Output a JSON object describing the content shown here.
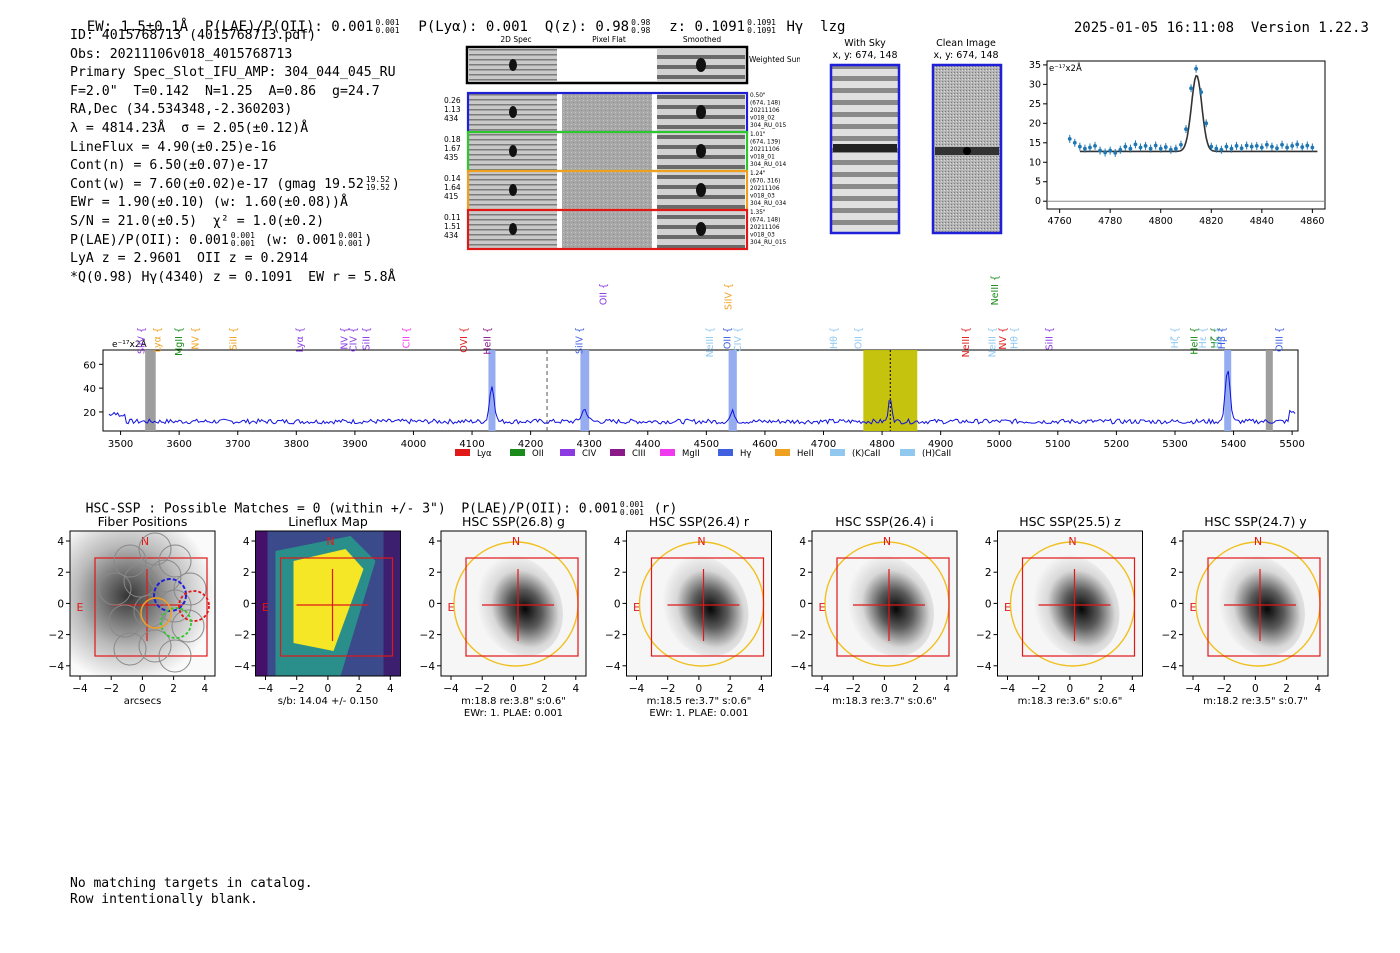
{
  "header": {
    "left": "EW: 1.5±0.1Å  P(LAE)/P(OII): 0.001",
    "ratio_hi": "0.001",
    "ratio_lo": "0.001",
    "plya": "P(Lyα): 0.001  Q(z): 0.98",
    "qz_hi": "0.98",
    "qz_lo": "0.98",
    "z": "z: 0.1091",
    "z_hi": "0.1091",
    "z_lo": "0.1091",
    "line": "Hγ  lzg",
    "timestamp": "2025-01-05 16:11:08",
    "version": "Version 1.22.3"
  },
  "info_lines": [
    "ID: 4015768713 (4015768713.pdf)",
    "Obs: 20211106v018_4015768713",
    "Primary Spec_Slot_IFU_AMP: 304_044_045_RU",
    "F=2.0\"  T=0.142  N=1.25  A=0.86  g=24.7",
    "RA,Dec (34.534348,-2.360203)",
    "λ = 4814.23Å  σ = 2.05(±0.12)Å",
    "LineFlux = 4.90(±0.25)e-16",
    "Cont(n) = 6.50(±0.07)e-17"
  ],
  "info_contw": "Cont(w) = 7.60(±0.02)e-17 (gmag 19.52",
  "info_contw_hi": "19.52",
  "info_contw_lo": "19.52",
  "info_ewr": "EWr = 1.90(±0.10) (w: 1.60(±0.08))Å",
  "info_sn": "S/N = 21.0(±0.5)  χ² = 1.0(±0.2)",
  "info_plae": "P(LAE)/P(OII): 0.001",
  "info_plae_w": "(w: 0.001",
  "info_lya": "LyA z = 2.9601  OII z = 0.2914",
  "info_q": "*Q(0.98) Hγ(4340) z = 0.1091  EW r = 5.8Å",
  "cutouts": {
    "col_2d": "2D Spec",
    "col_flat": "Pixel Flat",
    "col_smooth": "Smoothed",
    "weighted": "Weighted Sum",
    "rows": [
      {
        "stats": [
          "0.26",
          "1.13",
          "434"
        ],
        "meta": [
          "0.50\"",
          "(674, 148)",
          "20211106",
          "v018_02",
          "304_RU_015"
        ],
        "color": "#1f1fd8"
      },
      {
        "stats": [
          "0.18",
          "1.67",
          "435"
        ],
        "meta": [
          "1.01\"",
          "(674, 139)",
          "20211106",
          "v018_01",
          "304_RU_014"
        ],
        "color": "#2ec82e"
      },
      {
        "stats": [
          "0.14",
          "1.64",
          "415"
        ],
        "meta": [
          "1.24\"",
          "(670, 316)",
          "20211106",
          "v018_03",
          "304_RU_034"
        ],
        "color": "#f0a020"
      },
      {
        "stats": [
          "0.11",
          "1.51",
          "434"
        ],
        "meta": [
          "1.35\"",
          "(674, 148)",
          "20211106",
          "v018_03",
          "304_RU_015"
        ],
        "color": "#e01818"
      }
    ]
  },
  "sky": {
    "with_sky": "With Sky",
    "with_sky_xy": "x, y: 674, 148",
    "clean": "Clean Image",
    "clean_xy": "x, y: 674, 148"
  },
  "line_fit": {
    "ylabel": "e⁻¹⁷x2Å",
    "xticks": [
      "4760",
      "4780",
      "4800",
      "4820",
      "4840",
      "4860"
    ],
    "yticks": [
      "0",
      "5",
      "10",
      "15",
      "20",
      "25",
      "30",
      "35"
    ]
  },
  "spectrum": {
    "ylabel": "e⁻¹⁷x2Å",
    "yticks": [
      "20",
      "40",
      "60"
    ],
    "xticks": [
      "3500",
      "3600",
      "3700",
      "3800",
      "3900",
      "4000",
      "4100",
      "4200",
      "4300",
      "4400",
      "4500",
      "4600",
      "4700",
      "4800",
      "4900",
      "5000",
      "5100",
      "5200",
      "5300",
      "5400",
      "5500"
    ],
    "legend": [
      "Lyα",
      "OII",
      "CIV",
      "CIII",
      "MgII",
      "Hγ",
      "HeII",
      "(K)CaII",
      "(H)CaII"
    ],
    "legend_colors": [
      "#e01818",
      "#1a8a1a",
      "#8a3ae0",
      "#8a1a8a",
      "#f03af0",
      "#4060e0",
      "#f0a020",
      "#90c8f0",
      "#90c8f0"
    ],
    "line_labels": [
      "SiIV",
      "Lyα",
      "MgII",
      "NV",
      "SiII",
      "Lyα",
      "NV",
      "CIV",
      "SiII",
      "CII",
      "OVI",
      "HeII",
      "SiIV",
      "OII",
      "NeIII",
      "SiIV",
      "OII",
      "CIV",
      "Hθ",
      "OII",
      "NeIII",
      "NeIII",
      "NV",
      "Hθ",
      "SiII",
      "Hζ",
      "HeII",
      "NeIII",
      "Hε",
      "Hζ",
      "Hε",
      "Hβ",
      "OIII"
    ]
  },
  "hsc": {
    "title": "HSC-SSP : Possible Matches = 0 (within +/- 3\")  P(LAE)/P(OII): 0.001",
    "title_hi": "0.001",
    "title_lo": "0.001",
    "title_suffix": "(r)",
    "panels": [
      {
        "title": "Fiber Positions",
        "cap1": "arcsecs",
        "cap2": ""
      },
      {
        "title": "Lineflux Map",
        "cap1": "s/b: 14.04 +/- 0.150",
        "cap2": ""
      },
      {
        "title": "HSC SSP(26.8) g",
        "cap1": "m:18.8  re:3.8\"  s:0.6\"",
        "cap2": "EWr: 1. PLAE: 0.001"
      },
      {
        "title": "HSC SSP(26.4) r",
        "cap1": "m:18.5  re:3.7\"  s:0.6\"",
        "cap2": "EWr: 1. PLAE: 0.001"
      },
      {
        "title": "HSC SSP(26.4) i",
        "cap1": "m:18.3  re:3.7\"  s:0.6\"",
        "cap2": ""
      },
      {
        "title": "HSC SSP(25.5) z",
        "cap1": "m:18.3  re:3.6\"  s:0.6\"",
        "cap2": ""
      },
      {
        "title": "HSC SSP(24.7) y",
        "cap1": "m:18.2  re:3.5\"  s:0.7\"",
        "cap2": ""
      }
    ],
    "ticks": [
      "4",
      "2",
      "0",
      "−2",
      "−4"
    ],
    "xticks": [
      "−4",
      "−2",
      "0",
      "2",
      "4"
    ],
    "north": "N",
    "east": "E"
  },
  "footer": [
    "No matching targets in catalog.",
    "Row intentionally blank."
  ]
}
